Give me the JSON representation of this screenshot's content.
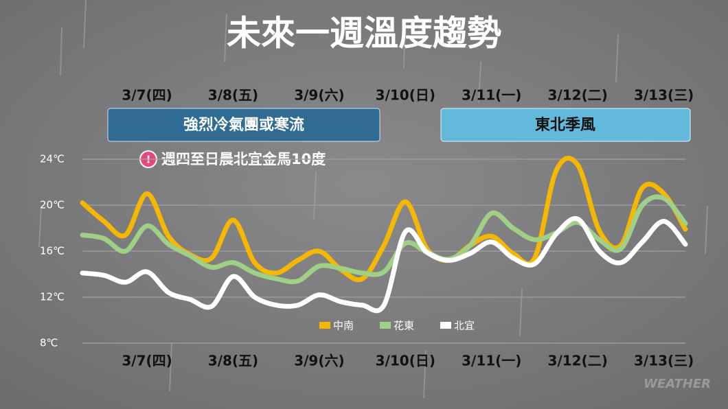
{
  "chart_data": {
    "type": "line",
    "title": "未來一週溫度趨勢",
    "banners": [
      {
        "text": "強烈冷氣團或寒流",
        "color": "#2f6b93"
      },
      {
        "text": "東北季風",
        "color": "#63b9dc"
      }
    ],
    "note": "週四至日晨北宜金馬10度",
    "watermark": "WEATHER",
    "categories": [
      null,
      null,
      null,
      "3/7(四)",
      null,
      null,
      null,
      "3/8(五)",
      null,
      null,
      null,
      "3/9(六)",
      null,
      null,
      null,
      "3/10(日)",
      null,
      null,
      null,
      "3/11(一)",
      null,
      null,
      null,
      "3/12(二)",
      null,
      null,
      null,
      "3/13(三)",
      null
    ],
    "series": [
      {
        "name": "中南",
        "color": "#f5b700",
        "values": [
          20.2,
          18.6,
          17.4,
          21.0,
          17.3,
          15.7,
          15.4,
          18.7,
          15.0,
          14.1,
          15.2,
          16.0,
          14.4,
          13.6,
          16.5,
          20.3,
          16.2,
          15.2,
          16.5,
          17.3,
          15.8,
          15.4,
          23.0,
          23.5,
          17.8,
          16.5,
          21.5,
          21.0,
          17.9
        ]
      },
      {
        "name": "花東",
        "color": "#9fd085",
        "values": [
          17.4,
          17.1,
          16.0,
          18.2,
          16.6,
          15.6,
          14.6,
          15.0,
          14.1,
          13.6,
          13.4,
          14.7,
          14.5,
          14.1,
          14.2,
          16.7,
          15.9,
          15.3,
          16.5,
          19.3,
          18.0,
          17.0,
          17.6,
          18.5,
          17.0,
          16.2,
          20.0,
          20.6,
          18.4
        ]
      },
      {
        "name": "北宜",
        "color": "#ffffff",
        "values": [
          14.1,
          13.9,
          13.3,
          14.2,
          12.4,
          11.8,
          11.2,
          13.8,
          12.0,
          11.3,
          11.3,
          12.2,
          11.6,
          11.3,
          11.3,
          17.7,
          15.9,
          15.2,
          15.8,
          16.8,
          15.4,
          14.9,
          17.5,
          18.8,
          16.0,
          15.0,
          16.8,
          18.6,
          16.6
        ]
      }
    ],
    "ylim": [
      8,
      24
    ],
    "yticks": [
      {
        "value": 8,
        "label": "8℃"
      },
      {
        "value": 12,
        "label": "12℃"
      },
      {
        "value": 16,
        "label": "16℃"
      },
      {
        "value": 20,
        "label": "20℃"
      },
      {
        "value": 24,
        "label": "24℃"
      }
    ],
    "grid": true
  }
}
